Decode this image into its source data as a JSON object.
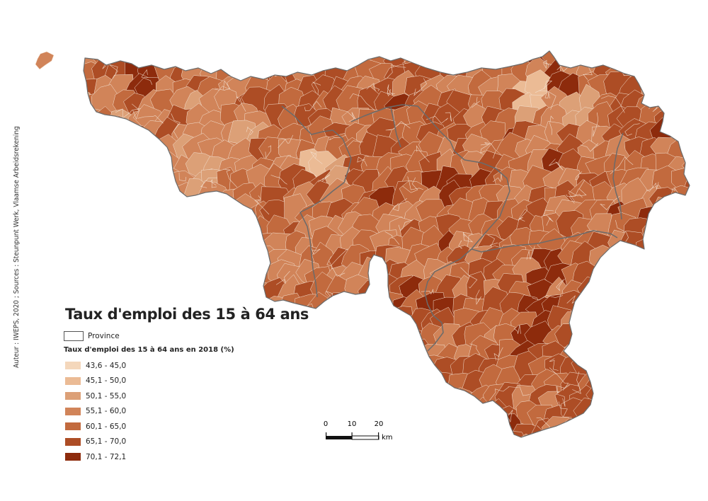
{
  "title": "Taux d'emploi des 15 à 64 ans",
  "credit": "Auteur : IWEPS, 2020 ; Sources : Steunpunt Werk, Vlaamse Arbeidsrekening",
  "legend": {
    "province_label": "Province",
    "subtitle": "Taux d'emploi des 15 à 64 ans en 2018 (%)",
    "classes": [
      {
        "label": "43,6 - 45,0",
        "color": "#f4d7bb"
      },
      {
        "label": "45,1 - 50,0",
        "color": "#ebbb95"
      },
      {
        "label": "50,1 - 55,0",
        "color": "#dca077"
      },
      {
        "label": "55,1 - 60,0",
        "color": "#d18459"
      },
      {
        "label": "60,1 - 65,0",
        "color": "#c26a3e"
      },
      {
        "label": "65,1 - 70,0",
        "color": "#ad4d25"
      },
      {
        "label": "70,1 - 72,1",
        "color": "#8d2b0c"
      }
    ]
  },
  "scale": {
    "ticks": [
      "0",
      "10",
      "20"
    ],
    "unit": "km"
  },
  "province_border_color": "#6b6b6b",
  "dominant_class_color": "#c26a3e"
}
